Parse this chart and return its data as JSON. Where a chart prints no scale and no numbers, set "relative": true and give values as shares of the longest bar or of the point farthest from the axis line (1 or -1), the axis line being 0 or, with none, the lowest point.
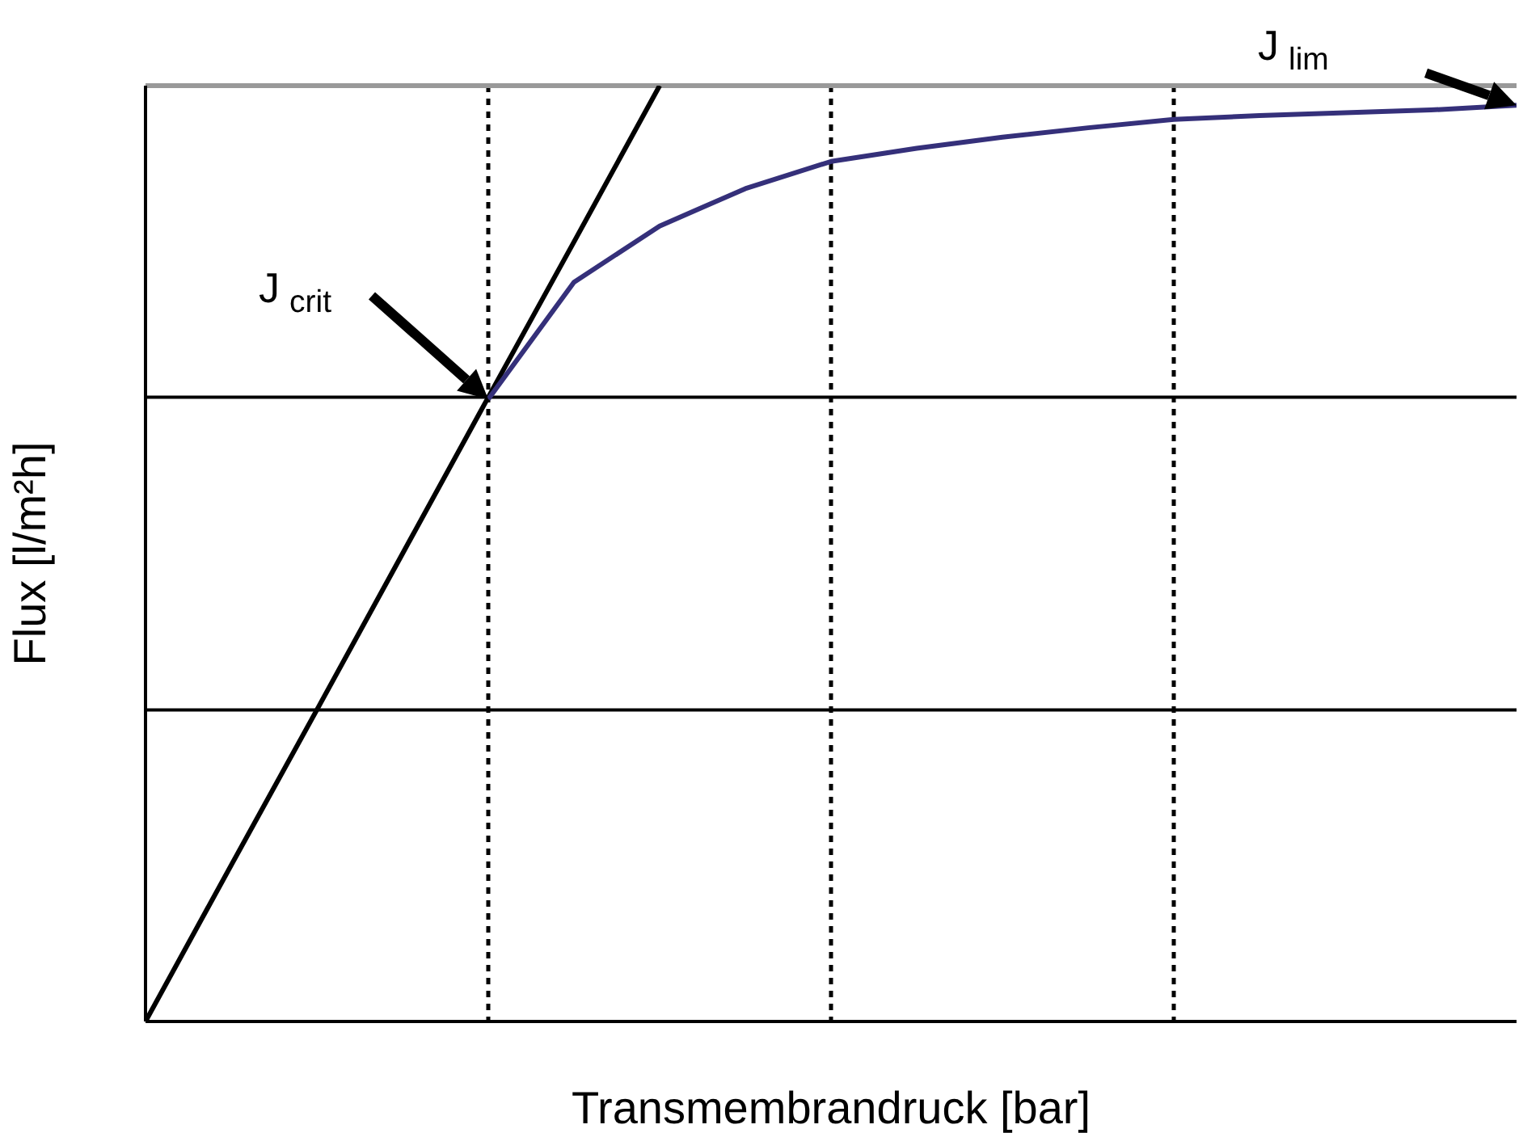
{
  "chart_data": {
    "type": "line",
    "relative": true,
    "xlabel": "Transmembrandruck [bar]",
    "ylabel": "Flux [l/m²h]",
    "grid": "x",
    "ref_lines": [
      {
        "axis": "y",
        "value": 0.333,
        "color": "#000000",
        "line_style": "solid"
      },
      {
        "axis": "y",
        "value": 0.667,
        "color": "#000000",
        "line_style": "solid"
      }
    ],
    "line_style": "solid",
    "marker": "none",
    "categories": [
      null,
      null,
      null,
      null,
      null,
      null,
      null,
      null,
      null,
      null,
      null,
      null,
      null,
      null,
      null,
      null,
      null
    ],
    "series": [
      {
        "color": "#000000",
        "values": [
          0,
          0.167,
          0.333,
          0.5,
          0.667,
          0.833,
          1,
          null,
          null,
          null,
          null,
          null,
          null,
          null,
          null,
          null,
          null
        ]
      },
      {
        "color": "#35307a",
        "values": [
          null,
          null,
          null,
          null,
          0.665,
          0.79,
          0.85,
          0.89,
          0.919,
          0.933,
          0.945,
          0.955,
          0.964,
          0.968,
          0.971,
          0.974,
          0.979
        ]
      }
    ],
    "annotations": [
      "J$_{crit}$",
      "J$_{lim}$"
    ]
  }
}
